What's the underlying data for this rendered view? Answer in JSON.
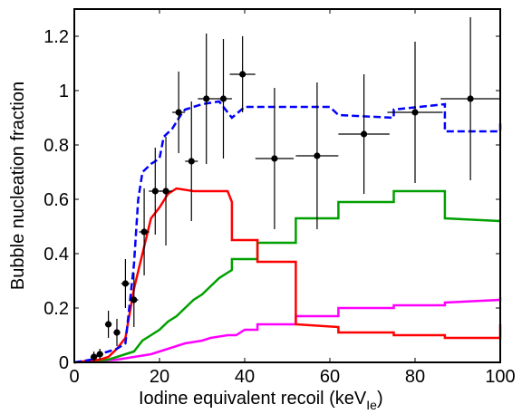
{
  "chart_data": {
    "type": "line",
    "xlabel": "Iodine equivalent recoil (keV",
    "xlabel_subscript": "Ie",
    "xlabel_suffix": ")",
    "ylabel": "Bubble nucleation fraction",
    "xlim": [
      0,
      100
    ],
    "ylim": [
      0,
      1.3
    ],
    "x_ticks": [
      0,
      20,
      40,
      60,
      80,
      100
    ],
    "x_tick_labels": [
      "0",
      "20",
      "40",
      "60",
      "80",
      "100"
    ],
    "y_ticks": [
      0,
      0.2,
      0.4,
      0.6,
      0.8,
      1,
      1.2
    ],
    "y_tick_labels": [
      "0",
      "0.2",
      "0.4",
      "0.6",
      "0.8",
      "1",
      "1.2"
    ],
    "grid": false,
    "series": [
      {
        "key": "total",
        "color": "#0000ff",
        "style": "dashed-step",
        "points": [
          [
            0,
            0
          ],
          [
            4,
            0.01
          ],
          [
            6,
            0.03
          ],
          [
            8,
            0.04
          ],
          [
            10,
            0.05
          ],
          [
            12,
            0.07
          ],
          [
            14,
            0.36
          ],
          [
            15,
            0.6
          ],
          [
            16,
            0.7
          ],
          [
            18,
            0.73
          ],
          [
            20,
            0.75
          ],
          [
            21,
            0.83
          ],
          [
            23,
            0.86
          ],
          [
            25,
            0.91
          ],
          [
            26,
            0.93
          ],
          [
            28,
            0.94
          ],
          [
            30,
            0.95
          ],
          [
            34,
            0.96
          ],
          [
            37,
            0.9
          ],
          [
            40,
            0.94
          ],
          [
            52,
            0.94
          ],
          [
            60,
            0.94
          ],
          [
            62,
            0.91
          ],
          [
            75,
            0.9
          ],
          [
            75,
            0.93
          ],
          [
            87,
            0.95
          ],
          [
            87,
            0.85
          ],
          [
            100,
            0.85
          ],
          [
            100,
            0.88
          ]
        ]
      },
      {
        "key": "red",
        "color": "#ff0000",
        "style": "solid-step",
        "points": [
          [
            0,
            0
          ],
          [
            6,
            0.01
          ],
          [
            8,
            0.02
          ],
          [
            10,
            0.05
          ],
          [
            12,
            0.09
          ],
          [
            14,
            0.27
          ],
          [
            16,
            0.4
          ],
          [
            18,
            0.53
          ],
          [
            20,
            0.57
          ],
          [
            22,
            0.62
          ],
          [
            24,
            0.64
          ],
          [
            28,
            0.63
          ],
          [
            32,
            0.63
          ],
          [
            36,
            0.63
          ],
          [
            37,
            0.59
          ],
          [
            37,
            0.45
          ],
          [
            43,
            0.45
          ],
          [
            43,
            0.37
          ],
          [
            52,
            0.37
          ],
          [
            52,
            0.21
          ],
          [
            52,
            0.14
          ],
          [
            62,
            0.13
          ],
          [
            62,
            0.11
          ],
          [
            75,
            0.11
          ],
          [
            75,
            0.1
          ],
          [
            87,
            0.1
          ],
          [
            87,
            0.09
          ],
          [
            100,
            0.09
          ],
          [
            100,
            0.14
          ]
        ]
      },
      {
        "key": "green",
        "color": "#00a000",
        "style": "solid-step",
        "points": [
          [
            0,
            0
          ],
          [
            8,
            0.01
          ],
          [
            10,
            0.02
          ],
          [
            14,
            0.04
          ],
          [
            16,
            0.08
          ],
          [
            18,
            0.1
          ],
          [
            20,
            0.12
          ],
          [
            22,
            0.15
          ],
          [
            24,
            0.17
          ],
          [
            26,
            0.2
          ],
          [
            28,
            0.23
          ],
          [
            30,
            0.25
          ],
          [
            32,
            0.28
          ],
          [
            34,
            0.31
          ],
          [
            37,
            0.34
          ],
          [
            37,
            0.38
          ],
          [
            43,
            0.38
          ],
          [
            43,
            0.44
          ],
          [
            52,
            0.44
          ],
          [
            52,
            0.53
          ],
          [
            62,
            0.53
          ],
          [
            62,
            0.59
          ],
          [
            75,
            0.59
          ],
          [
            75,
            0.63
          ],
          [
            87,
            0.63
          ],
          [
            87,
            0.53
          ],
          [
            100,
            0.52
          ]
        ]
      },
      {
        "key": "magenta",
        "color": "#ff00ff",
        "style": "solid-step",
        "points": [
          [
            0,
            0
          ],
          [
            10,
            0.01
          ],
          [
            14,
            0.02
          ],
          [
            18,
            0.03
          ],
          [
            20,
            0.04
          ],
          [
            22,
            0.05
          ],
          [
            24,
            0.06
          ],
          [
            26,
            0.07
          ],
          [
            28,
            0.075
          ],
          [
            30,
            0.08
          ],
          [
            32,
            0.09
          ],
          [
            36,
            0.1
          ],
          [
            38,
            0.1
          ],
          [
            40,
            0.12
          ],
          [
            43,
            0.12
          ],
          [
            43,
            0.14
          ],
          [
            52,
            0.14
          ],
          [
            52,
            0.17
          ],
          [
            62,
            0.17
          ],
          [
            62,
            0.2
          ],
          [
            75,
            0.2
          ],
          [
            75,
            0.21
          ],
          [
            87,
            0.21
          ],
          [
            87,
            0.22
          ],
          [
            100,
            0.23
          ],
          [
            100,
            0.24
          ]
        ]
      }
    ],
    "measured": {
      "key": "data",
      "color": "#000000",
      "points": [
        {
          "x": 4.6,
          "y": 0.02,
          "xerr": 0.8,
          "yerr": 0.02
        },
        {
          "x": 6.0,
          "y": 0.03,
          "xerr": 0.8,
          "yerr": 0.02
        },
        {
          "x": 8.0,
          "y": 0.14,
          "xerr": 0.8,
          "yerr": 0.05
        },
        {
          "x": 10.0,
          "y": 0.11,
          "xerr": 0.8,
          "yerr": 0.05
        },
        {
          "x": 12.0,
          "y": 0.29,
          "xerr": 1.0,
          "yerr": 0.09
        },
        {
          "x": 14.0,
          "y": 0.23,
          "xerr": 1.0,
          "yerr": 0.1
        },
        {
          "x": 16.4,
          "y": 0.48,
          "xerr": 1.2,
          "yerr": 0.16
        },
        {
          "x": 19.0,
          "y": 0.63,
          "xerr": 1.5,
          "yerr": 0.16
        },
        {
          "x": 21.5,
          "y": 0.63,
          "xerr": 1.5,
          "yerr": 0.2
        },
        {
          "x": 24.5,
          "y": 0.92,
          "xerr": 1.5,
          "yerr": 0.15
        },
        {
          "x": 27.5,
          "y": 0.74,
          "xerr": 1.5,
          "yerr": 0.22
        },
        {
          "x": 31.0,
          "y": 0.97,
          "xerr": 2.0,
          "yerr": 0.24
        },
        {
          "x": 35.0,
          "y": 0.97,
          "xerr": 2.0,
          "yerr": 0.22
        },
        {
          "x": 39.5,
          "y": 1.06,
          "xerr": 3.0,
          "yerr": 0.14
        },
        {
          "x": 47.0,
          "y": 0.75,
          "xerr": 4.5,
          "yerr": 0.26
        },
        {
          "x": 57.0,
          "y": 0.76,
          "xerr": 5.0,
          "yerr": 0.27
        },
        {
          "x": 68.0,
          "y": 0.84,
          "xerr": 6.0,
          "yerr": 0.22
        },
        {
          "x": 80.0,
          "y": 0.92,
          "xerr": 6.5,
          "yerr": 0.26
        },
        {
          "x": 93.0,
          "y": 0.97,
          "xerr": 7.0,
          "yerr": 0.3
        }
      ]
    }
  }
}
